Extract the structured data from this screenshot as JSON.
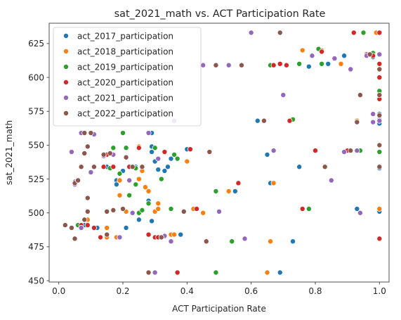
{
  "chart_data": {
    "type": "scatter",
    "title": "sat_2021_math vs. ACT Participation Rate",
    "xlabel": "ACT Participation Rate",
    "ylabel": "sat_2021_math",
    "xlim": [
      -0.03,
      1.03
    ],
    "ylim": [
      449,
      640
    ],
    "xticks": [
      0.0,
      0.2,
      0.4,
      0.6,
      0.8,
      1.0
    ],
    "xtick_labels": [
      "0.0",
      "0.2",
      "0.4",
      "0.6",
      "0.8",
      "1.0"
    ],
    "yticks": [
      450,
      475,
      500,
      525,
      550,
      575,
      600,
      625
    ],
    "ytick_labels": [
      "450",
      "475",
      "500",
      "525",
      "550",
      "575",
      "600",
      "625"
    ],
    "grid": false,
    "legend_position": "top-left",
    "series": [
      {
        "name": "act_2017_participation",
        "color": "#1f77b4",
        "points": [
          [
            0.08,
            491
          ],
          [
            0.1,
            530
          ],
          [
            0.12,
            489
          ],
          [
            0.15,
            534
          ],
          [
            0.18,
            524
          ],
          [
            0.18,
            521
          ],
          [
            0.2,
            531
          ],
          [
            0.21,
            489
          ],
          [
            0.22,
            534
          ],
          [
            0.24,
            534
          ],
          [
            0.25,
            495
          ],
          [
            0.28,
            509
          ],
          [
            0.29,
            559
          ],
          [
            0.29,
            549
          ],
          [
            0.29,
            545
          ],
          [
            0.29,
            494
          ],
          [
            0.3,
            538
          ],
          [
            0.31,
            532
          ],
          [
            0.33,
            531
          ],
          [
            0.34,
            534
          ],
          [
            0.35,
            540
          ],
          [
            0.38,
            484
          ],
          [
            0.4,
            547
          ],
          [
            0.55,
            516
          ],
          [
            0.62,
            568
          ],
          [
            0.65,
            543
          ],
          [
            0.66,
            522
          ],
          [
            0.69,
            456
          ],
          [
            0.73,
            479
          ],
          [
            0.75,
            534
          ],
          [
            0.78,
            608
          ],
          [
            0.84,
            610
          ],
          [
            0.89,
            616
          ],
          [
            0.9,
            546
          ],
          [
            0.93,
            503
          ],
          [
            0.98,
            615
          ],
          [
            1.0,
            633
          ],
          [
            1.0,
            606
          ],
          [
            1.0,
            588
          ],
          [
            1.0,
            573
          ],
          [
            1.0,
            566
          ],
          [
            1.0,
            533
          ],
          [
            1.0,
            501
          ]
        ]
      },
      {
        "name": "act_2018_participation",
        "color": "#ff7f0e",
        "points": [
          [
            0.09,
            495
          ],
          [
            0.15,
            482
          ],
          [
            0.15,
            489
          ],
          [
            0.17,
            534
          ],
          [
            0.18,
            482
          ],
          [
            0.19,
            524
          ],
          [
            0.19,
            513
          ],
          [
            0.21,
            501
          ],
          [
            0.23,
            534
          ],
          [
            0.25,
            549
          ],
          [
            0.25,
            525
          ],
          [
            0.26,
            531
          ],
          [
            0.27,
            519
          ],
          [
            0.28,
            516
          ],
          [
            0.3,
            501
          ],
          [
            0.31,
            540
          ],
          [
            0.31,
            507
          ],
          [
            0.31,
            503
          ],
          [
            0.35,
            484
          ],
          [
            0.36,
            484
          ],
          [
            0.4,
            538
          ],
          [
            0.42,
            503
          ],
          [
            0.45,
            500
          ],
          [
            0.53,
            516
          ],
          [
            0.65,
            456
          ],
          [
            0.66,
            479
          ],
          [
            0.67,
            522
          ],
          [
            0.72,
            568
          ],
          [
            0.76,
            620
          ],
          [
            0.82,
            620
          ],
          [
            0.88,
            610
          ],
          [
            0.93,
            568
          ],
          [
            0.96,
            617
          ],
          [
            0.99,
            633
          ],
          [
            1.0,
            590
          ],
          [
            1.0,
            569
          ],
          [
            1.0,
            503
          ]
        ]
      },
      {
        "name": "act_2019_participation",
        "color": "#2ca02c",
        "points": [
          [
            0.06,
            491
          ],
          [
            0.13,
            482
          ],
          [
            0.16,
            533
          ],
          [
            0.17,
            548
          ],
          [
            0.19,
            529
          ],
          [
            0.2,
            559
          ],
          [
            0.21,
            548
          ],
          [
            0.22,
            513
          ],
          [
            0.24,
            533
          ],
          [
            0.24,
            521
          ],
          [
            0.25,
            500
          ],
          [
            0.26,
            502
          ],
          [
            0.28,
            507
          ],
          [
            0.3,
            548
          ],
          [
            0.32,
            482
          ],
          [
            0.32,
            525
          ],
          [
            0.35,
            503
          ],
          [
            0.36,
            543
          ],
          [
            0.37,
            540
          ],
          [
            0.49,
            516
          ],
          [
            0.49,
            456
          ],
          [
            0.54,
            479
          ],
          [
            0.66,
            609
          ],
          [
            0.73,
            569
          ],
          [
            0.75,
            610
          ],
          [
            0.78,
            503
          ],
          [
            0.8,
            546
          ],
          [
            0.81,
            621
          ],
          [
            0.82,
            610
          ],
          [
            0.94,
            546
          ],
          [
            0.95,
            633
          ],
          [
            0.98,
            618
          ],
          [
            1.0,
            617
          ],
          [
            1.0,
            590
          ],
          [
            1.0,
            568
          ],
          [
            1.0,
            545
          ]
        ]
      },
      {
        "name": "act_2020_participation",
        "color": "#d62728",
        "points": [
          [
            0.07,
            491
          ],
          [
            0.09,
            491
          ],
          [
            0.11,
            489
          ],
          [
            0.13,
            482
          ],
          [
            0.14,
            534
          ],
          [
            0.15,
            543
          ],
          [
            0.17,
            534
          ],
          [
            0.22,
            534
          ],
          [
            0.25,
            548
          ],
          [
            0.28,
            484
          ],
          [
            0.3,
            482
          ],
          [
            0.31,
            482
          ],
          [
            0.33,
            545
          ],
          [
            0.37,
            456
          ],
          [
            0.41,
            547
          ],
          [
            0.43,
            503
          ],
          [
            0.56,
            522
          ],
          [
            0.67,
            609
          ],
          [
            0.69,
            610
          ],
          [
            0.71,
            609
          ],
          [
            0.72,
            568
          ],
          [
            0.76,
            503
          ],
          [
            0.8,
            546
          ],
          [
            0.82,
            619
          ],
          [
            0.9,
            546
          ],
          [
            0.92,
            633
          ],
          [
            0.96,
            617
          ],
          [
            0.98,
            616
          ],
          [
            1.0,
            633
          ],
          [
            1.0,
            610
          ],
          [
            1.0,
            600
          ],
          [
            1.0,
            587
          ],
          [
            1.0,
            584
          ],
          [
            1.0,
            570
          ],
          [
            1.0,
            534
          ],
          [
            1.0,
            481
          ]
        ]
      },
      {
        "name": "act_2021_participation",
        "color": "#9467bd",
        "points": [
          [
            0.04,
            545
          ],
          [
            0.05,
            523
          ],
          [
            0.05,
            521
          ],
          [
            0.07,
            489
          ],
          [
            0.07,
            559
          ],
          [
            0.1,
            530
          ],
          [
            0.11,
            558
          ],
          [
            0.14,
            542
          ],
          [
            0.17,
            543
          ],
          [
            0.19,
            482
          ],
          [
            0.22,
            524
          ],
          [
            0.23,
            500
          ],
          [
            0.28,
            559
          ],
          [
            0.3,
            456
          ],
          [
            0.31,
            540
          ],
          [
            0.33,
            483
          ],
          [
            0.35,
            479
          ],
          [
            0.36,
            568
          ],
          [
            0.45,
            609
          ],
          [
            0.5,
            501
          ],
          [
            0.53,
            609
          ],
          [
            0.58,
            481
          ],
          [
            0.6,
            633
          ],
          [
            0.67,
            546
          ],
          [
            0.7,
            587
          ],
          [
            0.79,
            616
          ],
          [
            0.85,
            524
          ],
          [
            0.86,
            614
          ],
          [
            0.89,
            545
          ],
          [
            0.91,
            606
          ],
          [
            0.93,
            546
          ],
          [
            0.94,
            500
          ],
          [
            0.96,
            616
          ],
          [
            0.98,
            573
          ],
          [
            0.98,
            567
          ],
          [
            1.0,
            617
          ],
          [
            1.0,
            569
          ],
          [
            1.0,
            568
          ]
        ]
      },
      {
        "name": "act_2022_participation",
        "color": "#8c564b",
        "points": [
          [
            0.02,
            491
          ],
          [
            0.04,
            489
          ],
          [
            0.05,
            522
          ],
          [
            0.05,
            481
          ],
          [
            0.06,
            524
          ],
          [
            0.07,
            534
          ],
          [
            0.08,
            559
          ],
          [
            0.08,
            544
          ],
          [
            0.08,
            495
          ],
          [
            0.09,
            511
          ],
          [
            0.09,
            501
          ],
          [
            0.09,
            549
          ],
          [
            0.1,
            559
          ],
          [
            0.11,
            534
          ],
          [
            0.14,
            543
          ],
          [
            0.15,
            501
          ],
          [
            0.15,
            484
          ],
          [
            0.16,
            544
          ],
          [
            0.17,
            502
          ],
          [
            0.2,
            503
          ],
          [
            0.21,
            541
          ],
          [
            0.23,
            534
          ],
          [
            0.26,
            534
          ],
          [
            0.28,
            456
          ],
          [
            0.32,
            482
          ],
          [
            0.39,
            501
          ],
          [
            0.46,
            479
          ],
          [
            0.47,
            545
          ],
          [
            0.49,
            609
          ],
          [
            0.57,
            609
          ],
          [
            0.64,
            568
          ],
          [
            0.69,
            633
          ],
          [
            0.83,
            534
          ],
          [
            0.91,
            546
          ],
          [
            0.93,
            567
          ],
          [
            0.94,
            587
          ],
          [
            0.97,
            617
          ],
          [
            1.0,
            606
          ],
          [
            1.0,
            587
          ],
          [
            1.0,
            572
          ],
          [
            1.0,
            550
          ],
          [
            1.0,
            534
          ]
        ]
      }
    ]
  }
}
